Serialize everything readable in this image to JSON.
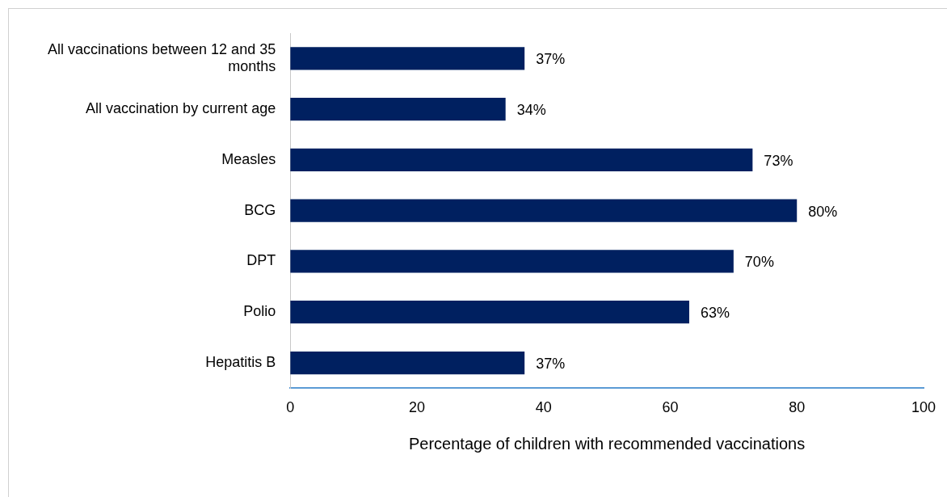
{
  "chart_data": {
    "type": "bar",
    "orientation": "horizontal",
    "xlabel": "Percentage of children with recommended vaccinations",
    "categories": [
      "All vaccinations between 12 and 35 months",
      "All vaccination by current age",
      "Measles",
      "BCG",
      "DPT",
      "Polio",
      "Hepatitis B"
    ],
    "values": [
      37,
      34,
      73,
      80,
      70,
      63,
      37
    ],
    "value_labels": [
      "37%",
      "34%",
      "73%",
      "80%",
      "70%",
      "63%",
      "37%"
    ],
    "color": "#002060",
    "xlim": [
      0,
      100
    ],
    "xticks": [
      0,
      20,
      40,
      60,
      80,
      100
    ],
    "grid": false,
    "legend": false
  }
}
